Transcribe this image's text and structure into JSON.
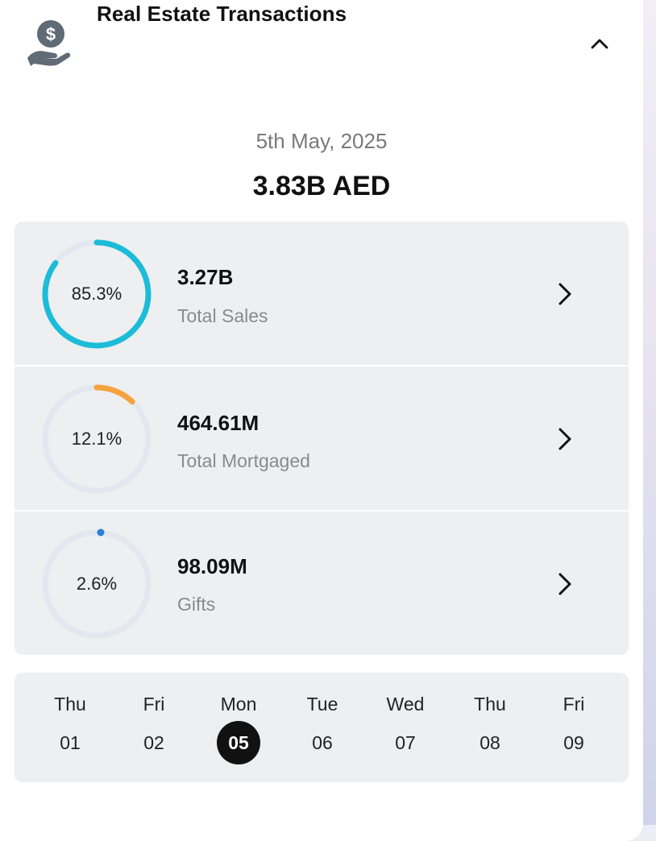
{
  "header": {
    "title": "Real Estate Transactions",
    "icon": "hand-money-icon",
    "collapse_icon": "chevron-up-icon"
  },
  "summary": {
    "date": "5th May, 2025",
    "total": "3.83B AED"
  },
  "breakdown": [
    {
      "percent_label": "85.3%",
      "percent": 85.3,
      "amount": "3.27B",
      "label": "Total Sales",
      "color": "#1cbcd8"
    },
    {
      "percent_label": "12.1%",
      "percent": 12.1,
      "amount": "464.61M",
      "label": "Total Mortgaged",
      "color": "#f6a23e"
    },
    {
      "percent_label": "2.6%",
      "percent": 2.6,
      "amount": "98.09M",
      "label": "Gifts",
      "color": "#2f7fd6"
    }
  ],
  "colors": {
    "ring_track": "#e3e7ef",
    "selected_day": "#111111"
  },
  "days": [
    {
      "name": "Thu",
      "num": "01"
    },
    {
      "name": "Fri",
      "num": "02"
    },
    {
      "name": "Mon",
      "num": "05",
      "selected": true
    },
    {
      "name": "Tue",
      "num": "06"
    },
    {
      "name": "Wed",
      "num": "07"
    },
    {
      "name": "Thu",
      "num": "08"
    },
    {
      "name": "Fri",
      "num": "09"
    }
  ]
}
